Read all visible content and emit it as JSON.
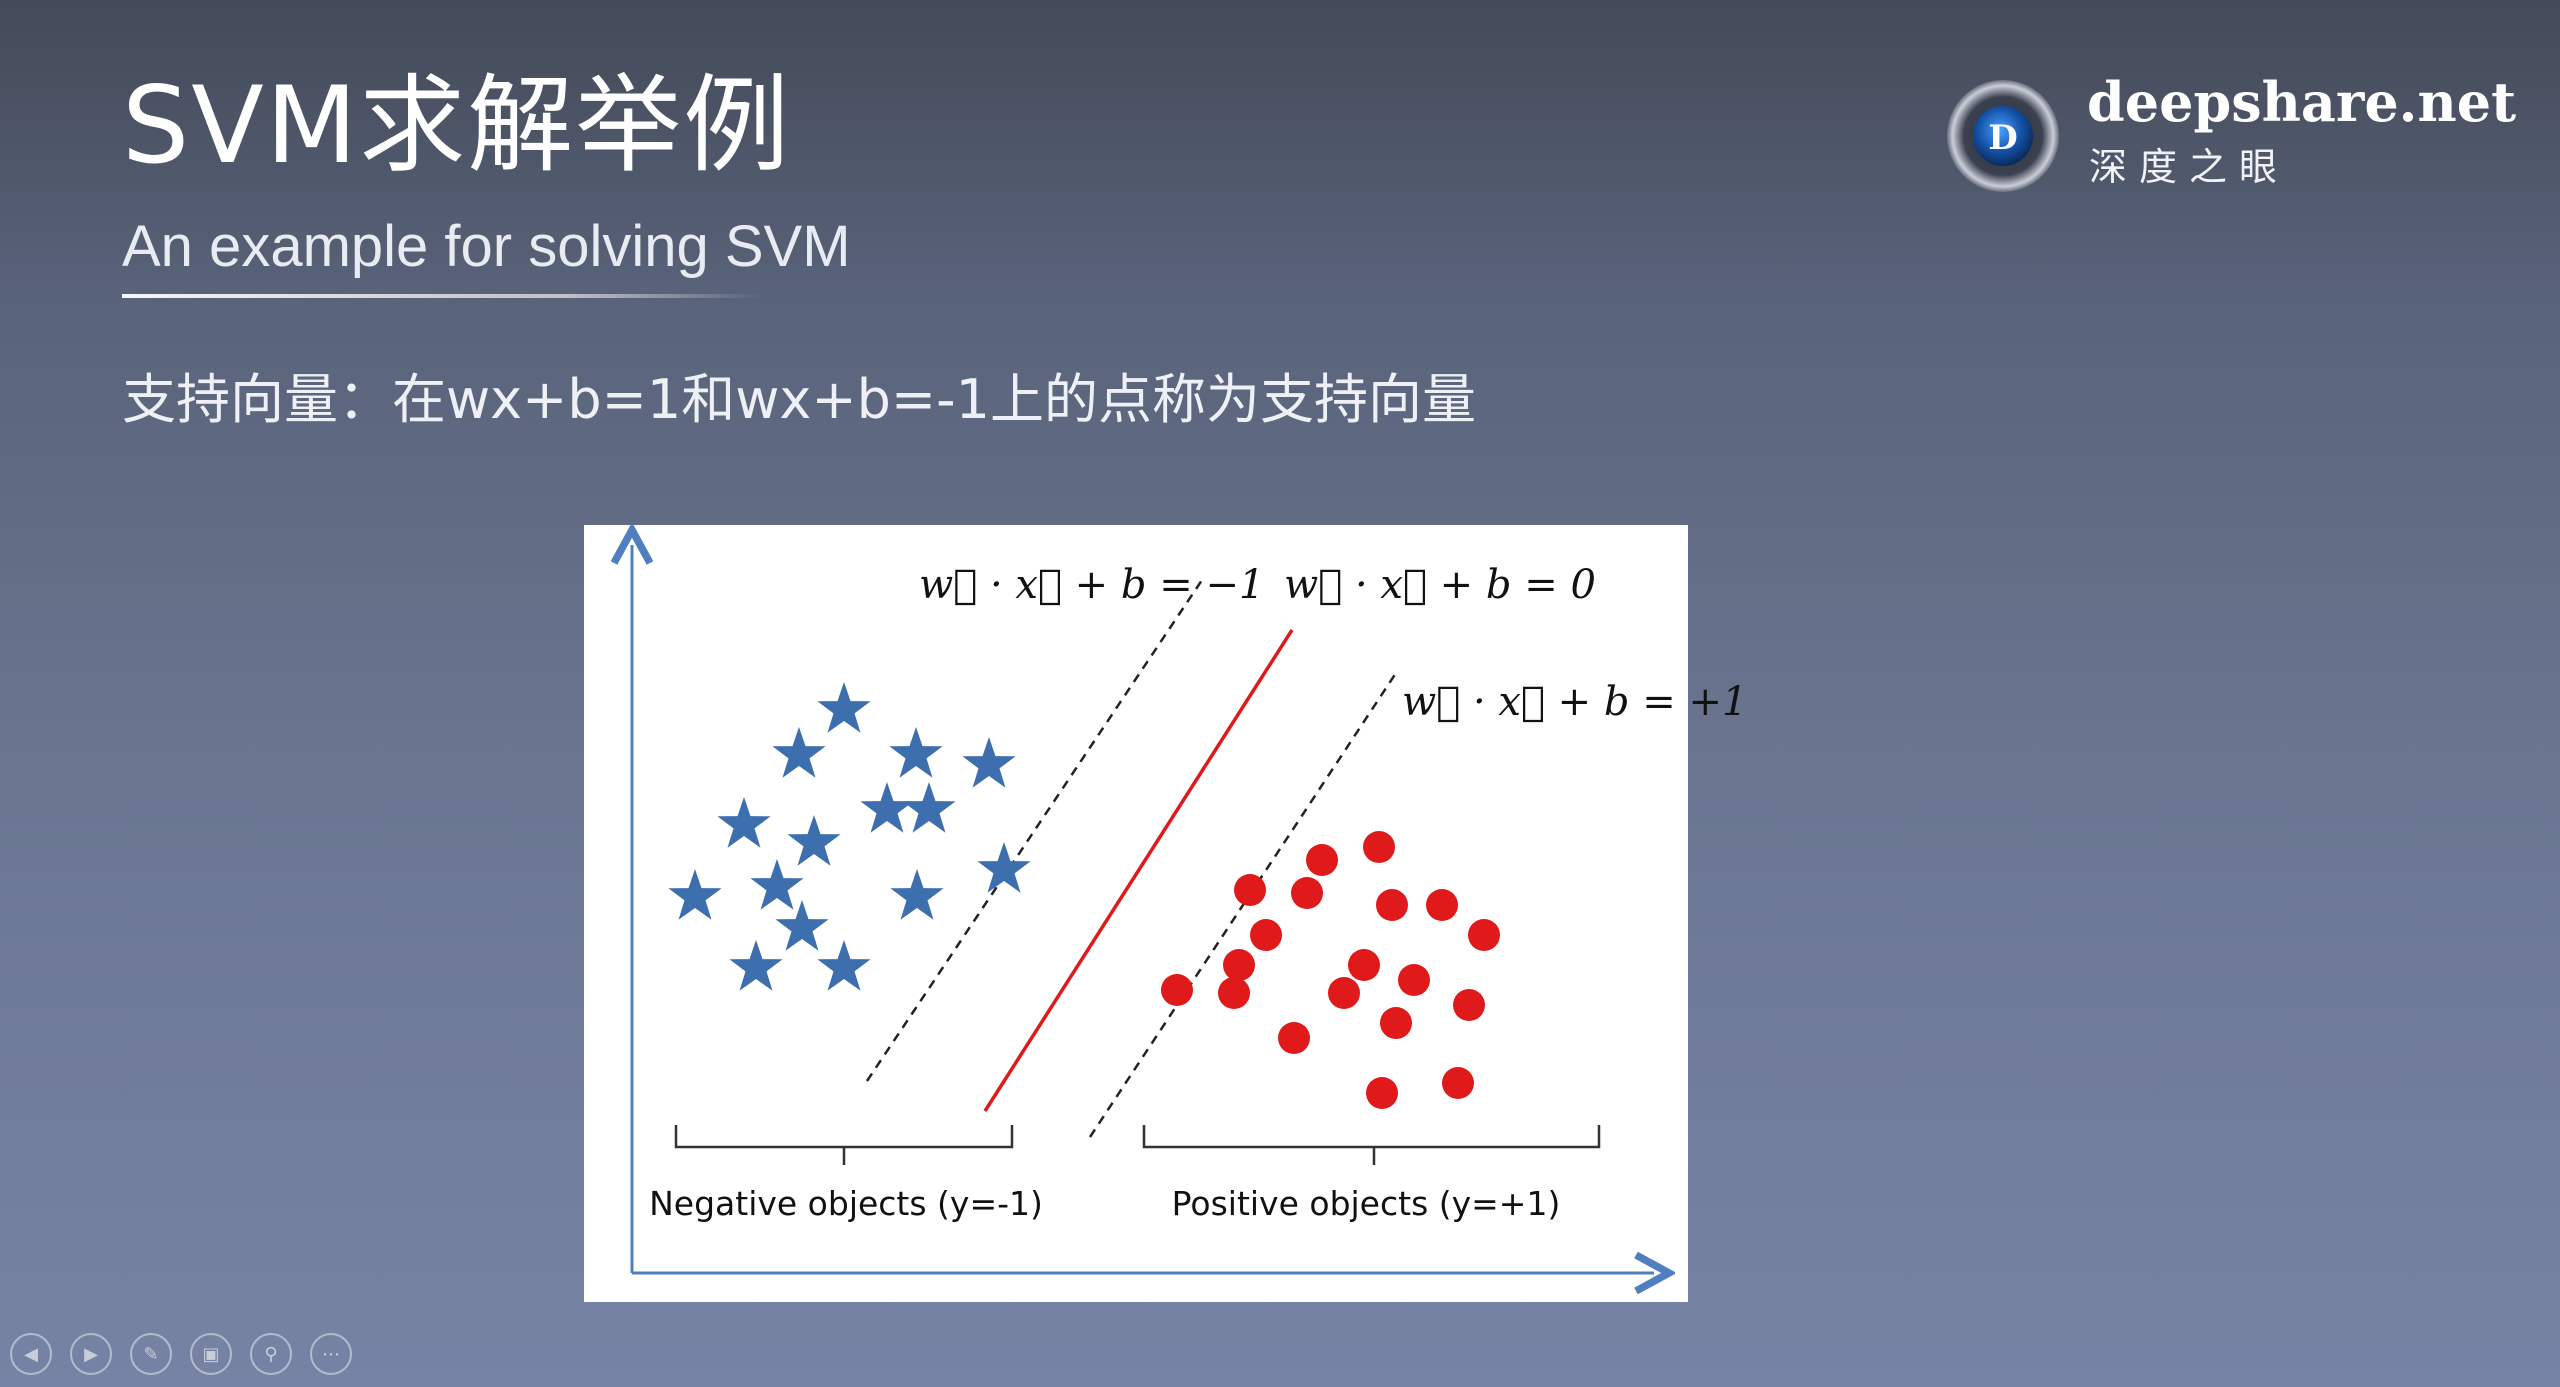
{
  "slide": {
    "title": "SVM求解举例",
    "subtitle": "An example for solving SVM",
    "definition": "支持向量：在wx+b=1和wx+b=-1上的点称为支持向量"
  },
  "logo": {
    "name": "deepshare.net",
    "tagline": "深度之眼",
    "mark_letter": "D"
  },
  "figure": {
    "equations": {
      "minus": "w⃗ · x⃗ + b = −1",
      "zero": "w⃗ · x⃗ + b = 0",
      "plus": "w⃗ · x⃗ + b = +1"
    },
    "groups": {
      "negative_label": "Negative objects (y=-1)",
      "positive_label": "Positive objects (y=+1)"
    },
    "colors": {
      "negative": "#3d6fae",
      "positive": "#e0191b",
      "hyperplane": "#e0191b",
      "margin": "#222222",
      "axis": "#4f7fbf"
    }
  },
  "toolbar": {
    "buttons": [
      "prev-icon",
      "next-icon",
      "pen-icon",
      "slides-icon",
      "zoom-icon",
      "more-icon"
    ]
  }
}
